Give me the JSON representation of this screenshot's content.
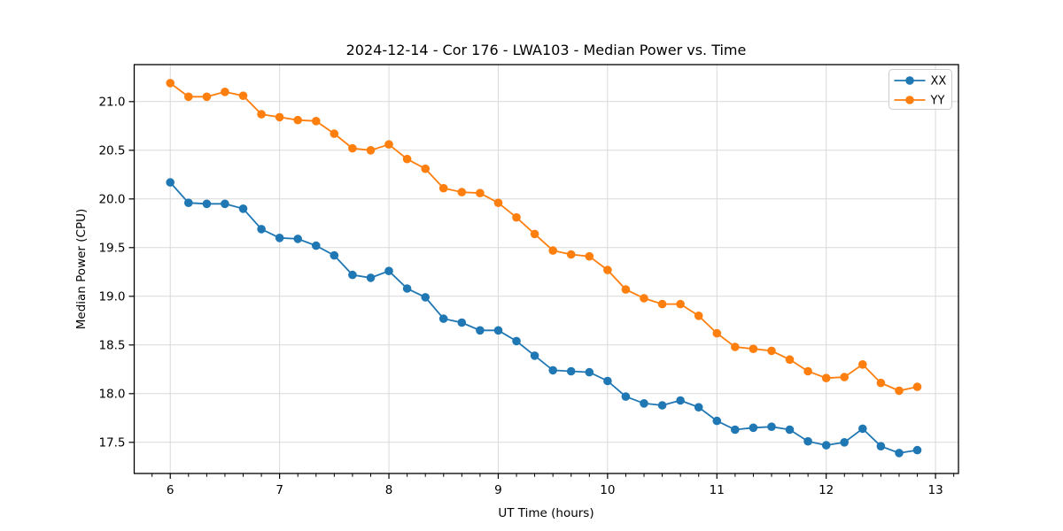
{
  "figure": {
    "background": "#ffffff",
    "grid_color": "#d9d9d9",
    "spine_color": "#000000"
  },
  "chart_data": {
    "type": "line",
    "title": "2024-12-14 - Cor 176 - LWA103 - Median Power vs. Time",
    "xlabel": "UT Time (hours)",
    "ylabel": "Median Power (CPU)",
    "xlim": [
      5.67,
      13.21
    ],
    "ylim": [
      17.18,
      21.38
    ],
    "xticks": [
      6,
      7,
      8,
      9,
      10,
      11,
      12,
      13
    ],
    "yticks": [
      17.5,
      18.0,
      18.5,
      19.0,
      19.5,
      20.0,
      20.5,
      21.0
    ],
    "minor_xtick_step": 0.16667,
    "grid": true,
    "legend_position": "upper right",
    "marker": "circle",
    "x": [
      6.0,
      6.1667,
      6.3333,
      6.5,
      6.6667,
      6.8333,
      7.0,
      7.1667,
      7.3333,
      7.5,
      7.6667,
      7.8333,
      8.0,
      8.1667,
      8.3333,
      8.5,
      8.6667,
      8.8333,
      9.0,
      9.1667,
      9.3333,
      9.5,
      9.6667,
      9.8333,
      10.0,
      10.1667,
      10.3333,
      10.5,
      10.6667,
      10.8333,
      11.0,
      11.1667,
      11.3333,
      11.5,
      11.6667,
      11.8333,
      12.0,
      12.1667,
      12.3333,
      12.5,
      12.6667,
      12.8333
    ],
    "series": [
      {
        "name": "XX",
        "color": "#1f77b4",
        "values": [
          20.17,
          19.96,
          19.95,
          19.95,
          19.9,
          19.69,
          19.6,
          19.59,
          19.52,
          19.42,
          19.22,
          19.19,
          19.26,
          19.08,
          18.99,
          18.77,
          18.73,
          18.65,
          18.65,
          18.54,
          18.39,
          18.24,
          18.23,
          18.22,
          18.13,
          17.97,
          17.9,
          17.88,
          17.93,
          17.86,
          17.72,
          17.63,
          17.65,
          17.66,
          17.63,
          17.51,
          17.47,
          17.5,
          17.64,
          17.46,
          17.39,
          17.42
        ]
      },
      {
        "name": "YY",
        "color": "#ff7f0e",
        "values": [
          21.19,
          21.05,
          21.05,
          21.1,
          21.06,
          20.87,
          20.84,
          20.81,
          20.8,
          20.67,
          20.52,
          20.5,
          20.56,
          20.41,
          20.31,
          20.11,
          20.07,
          20.06,
          19.96,
          19.81,
          19.64,
          19.47,
          19.43,
          19.41,
          19.27,
          19.07,
          18.98,
          18.92,
          18.92,
          18.8,
          18.62,
          18.48,
          18.46,
          18.44,
          18.35,
          18.23,
          18.16,
          18.17,
          18.3,
          18.11,
          18.03,
          18.07
        ]
      }
    ]
  }
}
